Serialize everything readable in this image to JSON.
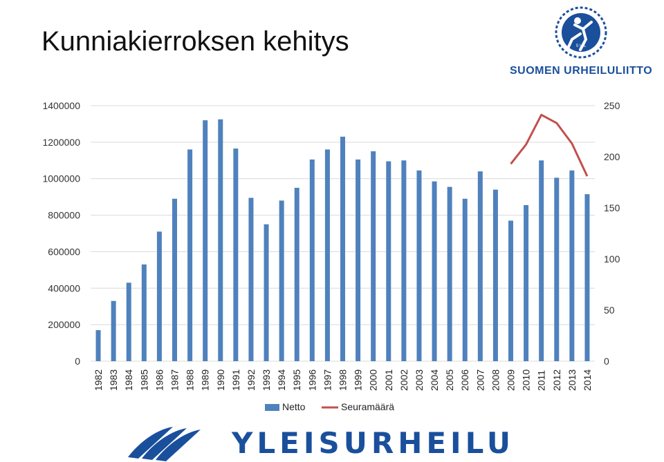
{
  "header": {
    "title": "Kunniakierroksen kehitys",
    "logo_text": "SUOMEN URHEILULIITTO",
    "logo_badge": "S U L"
  },
  "footer": {
    "brand_text": "YLEISURHEILU"
  },
  "colors": {
    "netto_bar": "#4f81bd",
    "seuramaara_line": "#c0504d",
    "brand_blue": "#1a4f9c"
  },
  "chart_data": {
    "type": "bar",
    "title": "Kunniakierroksen kehitys",
    "categories": [
      "1982",
      "1983",
      "1984",
      "1985",
      "1986",
      "1987",
      "1988",
      "1989",
      "1990",
      "1991",
      "1992",
      "1993",
      "1994",
      "1995",
      "1996",
      "1997",
      "1998",
      "1999",
      "2000",
      "2001",
      "2002",
      "2003",
      "2004",
      "2005",
      "2006",
      "2007",
      "2008",
      "2009",
      "2010",
      "2011",
      "2012",
      "2013",
      "2014"
    ],
    "series": [
      {
        "name": "Netto",
        "type": "bar",
        "axis": "left",
        "values": [
          170000,
          330000,
          430000,
          530000,
          710000,
          890000,
          1160000,
          1320000,
          1325000,
          1165000,
          895000,
          750000,
          880000,
          950000,
          1105000,
          1160000,
          1230000,
          1105000,
          1150000,
          1095000,
          1100000,
          1045000,
          985000,
          955000,
          890000,
          1040000,
          940000,
          770000,
          855000,
          1100000,
          1005000,
          1045000,
          915000
        ]
      },
      {
        "name": "Seuramäärä",
        "type": "line",
        "axis": "right",
        "values": [
          null,
          null,
          null,
          null,
          null,
          null,
          null,
          null,
          null,
          null,
          null,
          null,
          null,
          null,
          null,
          null,
          null,
          null,
          null,
          null,
          null,
          null,
          null,
          null,
          null,
          null,
          null,
          193,
          212,
          241,
          233,
          213,
          181
        ]
      }
    ],
    "y_left": {
      "ticks": [
        0,
        200000,
        400000,
        600000,
        800000,
        1000000,
        1200000,
        1400000
      ],
      "ylim": [
        0,
        1400000
      ]
    },
    "y_right": {
      "ticks": [
        0,
        50,
        100,
        150,
        200,
        250
      ],
      "ylim": [
        0,
        250
      ]
    },
    "legend_position": "bottom",
    "grid": true
  }
}
